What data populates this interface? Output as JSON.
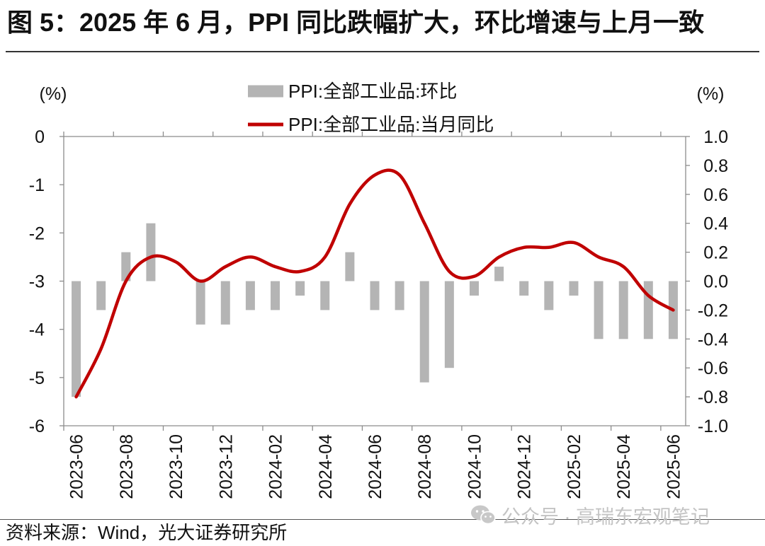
{
  "source": "资料来源：Wind，光大证券研究所",
  "watermark": {
    "icon": "wechat-icon",
    "text": "公众号 · 高瑞东宏观笔记"
  },
  "colors": {
    "bar": "#b4b4b4",
    "line": "#c00000",
    "axis": "#8c8c8c",
    "watermark": "#c4c4c4"
  },
  "chart_data": {
    "type": "bar",
    "title": "图 5：2025 年 6 月，PPI 同比跌幅扩大，环比增速与上月一致",
    "xlabel": "",
    "ylabel": "(%)",
    "y2label": "(%)",
    "categories": [
      "2023-06",
      "",
      "2023-08",
      "",
      "2023-10",
      "",
      "2023-12",
      "",
      "2024-02",
      "",
      "2024-04",
      "",
      "2024-06",
      "",
      "2024-08",
      "",
      "2024-10",
      "",
      "2024-12",
      "",
      "2025-02",
      "",
      "2025-04",
      "",
      "2025-06"
    ],
    "series": [
      {
        "name": "PPI:全部工业品:环比",
        "type": "bar",
        "axis": "right",
        "values": [
          -0.8,
          -0.2,
          0.2,
          0.4,
          0.0,
          -0.3,
          -0.3,
          -0.2,
          -0.2,
          -0.1,
          -0.2,
          0.2,
          -0.2,
          -0.2,
          -0.7,
          -0.6,
          -0.1,
          0.1,
          -0.1,
          -0.2,
          -0.1,
          -0.4,
          -0.4,
          -0.4,
          -0.4
        ]
      },
      {
        "name": "PPI:全部工业品:当月同比",
        "type": "line",
        "axis": "left",
        "smooth": true,
        "values": [
          -5.4,
          -4.4,
          -3.0,
          -2.5,
          -2.6,
          -3.0,
          -2.7,
          -2.5,
          -2.7,
          -2.8,
          -2.5,
          -1.4,
          -0.8,
          -0.8,
          -1.8,
          -2.8,
          -2.9,
          -2.5,
          -2.3,
          -2.3,
          -2.2,
          -2.5,
          -2.7,
          -3.3,
          -3.6
        ]
      }
    ],
    "ylim": [
      -6,
      0
    ],
    "y_ticks": [
      "0",
      "-1",
      "-2",
      "-3",
      "-4",
      "-5",
      "-6"
    ],
    "y2lim": [
      -1.0,
      1.0
    ],
    "y2_ticks": [
      "1.0",
      "0.8",
      "0.6",
      "0.4",
      "0.2",
      "0.0",
      "-0.2",
      "-0.4",
      "-0.6",
      "-0.8",
      "-1.0"
    ],
    "grid": false,
    "legend": "top-center"
  }
}
